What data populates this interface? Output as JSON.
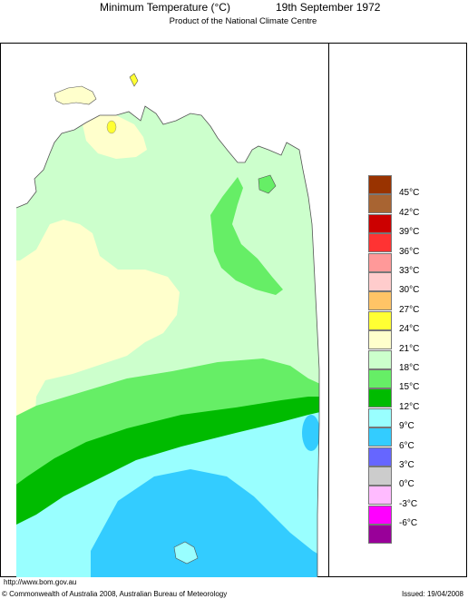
{
  "header": {
    "title": "Minimum Temperature (°C)",
    "date": "19th September 1972",
    "subtitle": "Product of the National Climate Centre"
  },
  "legend": {
    "labels": [
      "45°C",
      "42°C",
      "39°C",
      "36°C",
      "33°C",
      "30°C",
      "27°C",
      "24°C",
      "21°C",
      "18°C",
      "15°C",
      "12°C",
      "9°C",
      "6°C",
      "3°C",
      "0°C",
      "-3°C",
      "-6°C"
    ],
    "colors": [
      "#993300",
      "#a86432",
      "#cc0000",
      "#ff3333",
      "#ff9999",
      "#ffcccc",
      "#ffc466",
      "#ffff33",
      "#ffffcc",
      "#ccffcc",
      "#66ee66",
      "#00bb00",
      "#99ffff",
      "#33ccff",
      "#6666ff",
      "#cccccc",
      "#ffbbff",
      "#ff00ff",
      "#990099"
    ]
  },
  "footer": {
    "url": "http://www.bom.gov.au",
    "copyright": "© Commonwealth of Australia 2008, Australian Bureau of Meteorology",
    "issued": "Issued: 19/04/2008"
  }
}
